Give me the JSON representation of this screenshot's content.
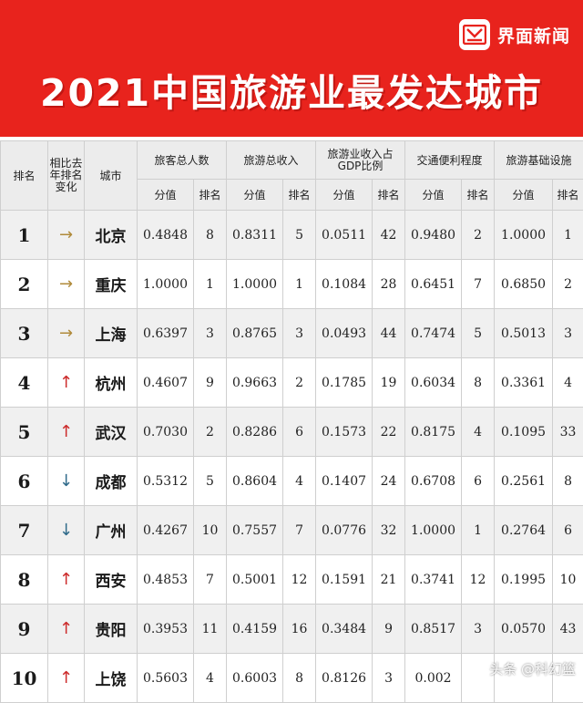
{
  "brand": {
    "name": "界面新闻"
  },
  "title": "2021中国旅游业最发达城市",
  "headers": {
    "rank": "排名",
    "change": "相比去年排名变化",
    "city": "城市",
    "groups": [
      "旅客总人数",
      "旅游总收入",
      "旅游业收入占GDP比例",
      "交通便利程度",
      "旅游基础设施"
    ],
    "sub_score": "分值",
    "sub_rank": "排名"
  },
  "arrow_glyphs": {
    "same": "→",
    "up": "↑",
    "down": "↓"
  },
  "rows": [
    {
      "rank": "1",
      "change": "same",
      "city": "北京",
      "vals": [
        "0.4848",
        "8",
        "0.8311",
        "5",
        "0.0511",
        "42",
        "0.9480",
        "2",
        "1.0000",
        "1"
      ]
    },
    {
      "rank": "2",
      "change": "same",
      "city": "重庆",
      "vals": [
        "1.0000",
        "1",
        "1.0000",
        "1",
        "0.1084",
        "28",
        "0.6451",
        "7",
        "0.6850",
        "2"
      ]
    },
    {
      "rank": "3",
      "change": "same",
      "city": "上海",
      "vals": [
        "0.6397",
        "3",
        "0.8765",
        "3",
        "0.0493",
        "44",
        "0.7474",
        "5",
        "0.5013",
        "3"
      ]
    },
    {
      "rank": "4",
      "change": "up",
      "city": "杭州",
      "vals": [
        "0.4607",
        "9",
        "0.9663",
        "2",
        "0.1785",
        "19",
        "0.6034",
        "8",
        "0.3361",
        "4"
      ]
    },
    {
      "rank": "5",
      "change": "up",
      "city": "武汉",
      "vals": [
        "0.7030",
        "2",
        "0.8286",
        "6",
        "0.1573",
        "22",
        "0.8175",
        "4",
        "0.1095",
        "33"
      ]
    },
    {
      "rank": "6",
      "change": "down",
      "city": "成都",
      "vals": [
        "0.5312",
        "5",
        "0.8604",
        "4",
        "0.1407",
        "24",
        "0.6708",
        "6",
        "0.2561",
        "8"
      ]
    },
    {
      "rank": "7",
      "change": "down",
      "city": "广州",
      "vals": [
        "0.4267",
        "10",
        "0.7557",
        "7",
        "0.0776",
        "32",
        "1.0000",
        "1",
        "0.2764",
        "6"
      ]
    },
    {
      "rank": "8",
      "change": "up",
      "city": "西安",
      "vals": [
        "0.4853",
        "7",
        "0.5001",
        "12",
        "0.1591",
        "21",
        "0.3741",
        "12",
        "0.1995",
        "10"
      ]
    },
    {
      "rank": "9",
      "change": "up",
      "city": "贵阳",
      "vals": [
        "0.3953",
        "11",
        "0.4159",
        "16",
        "0.3484",
        "9",
        "0.8517",
        "3",
        "0.0570",
        "43"
      ]
    },
    {
      "rank": "10",
      "change": "up",
      "city": "上饶",
      "vals": [
        "0.5603",
        "4",
        "0.6003",
        "8",
        "0.8126",
        "3",
        "0.002",
        "",
        "",
        ""
      ]
    }
  ],
  "watermark": "头条 @科幻篮"
}
